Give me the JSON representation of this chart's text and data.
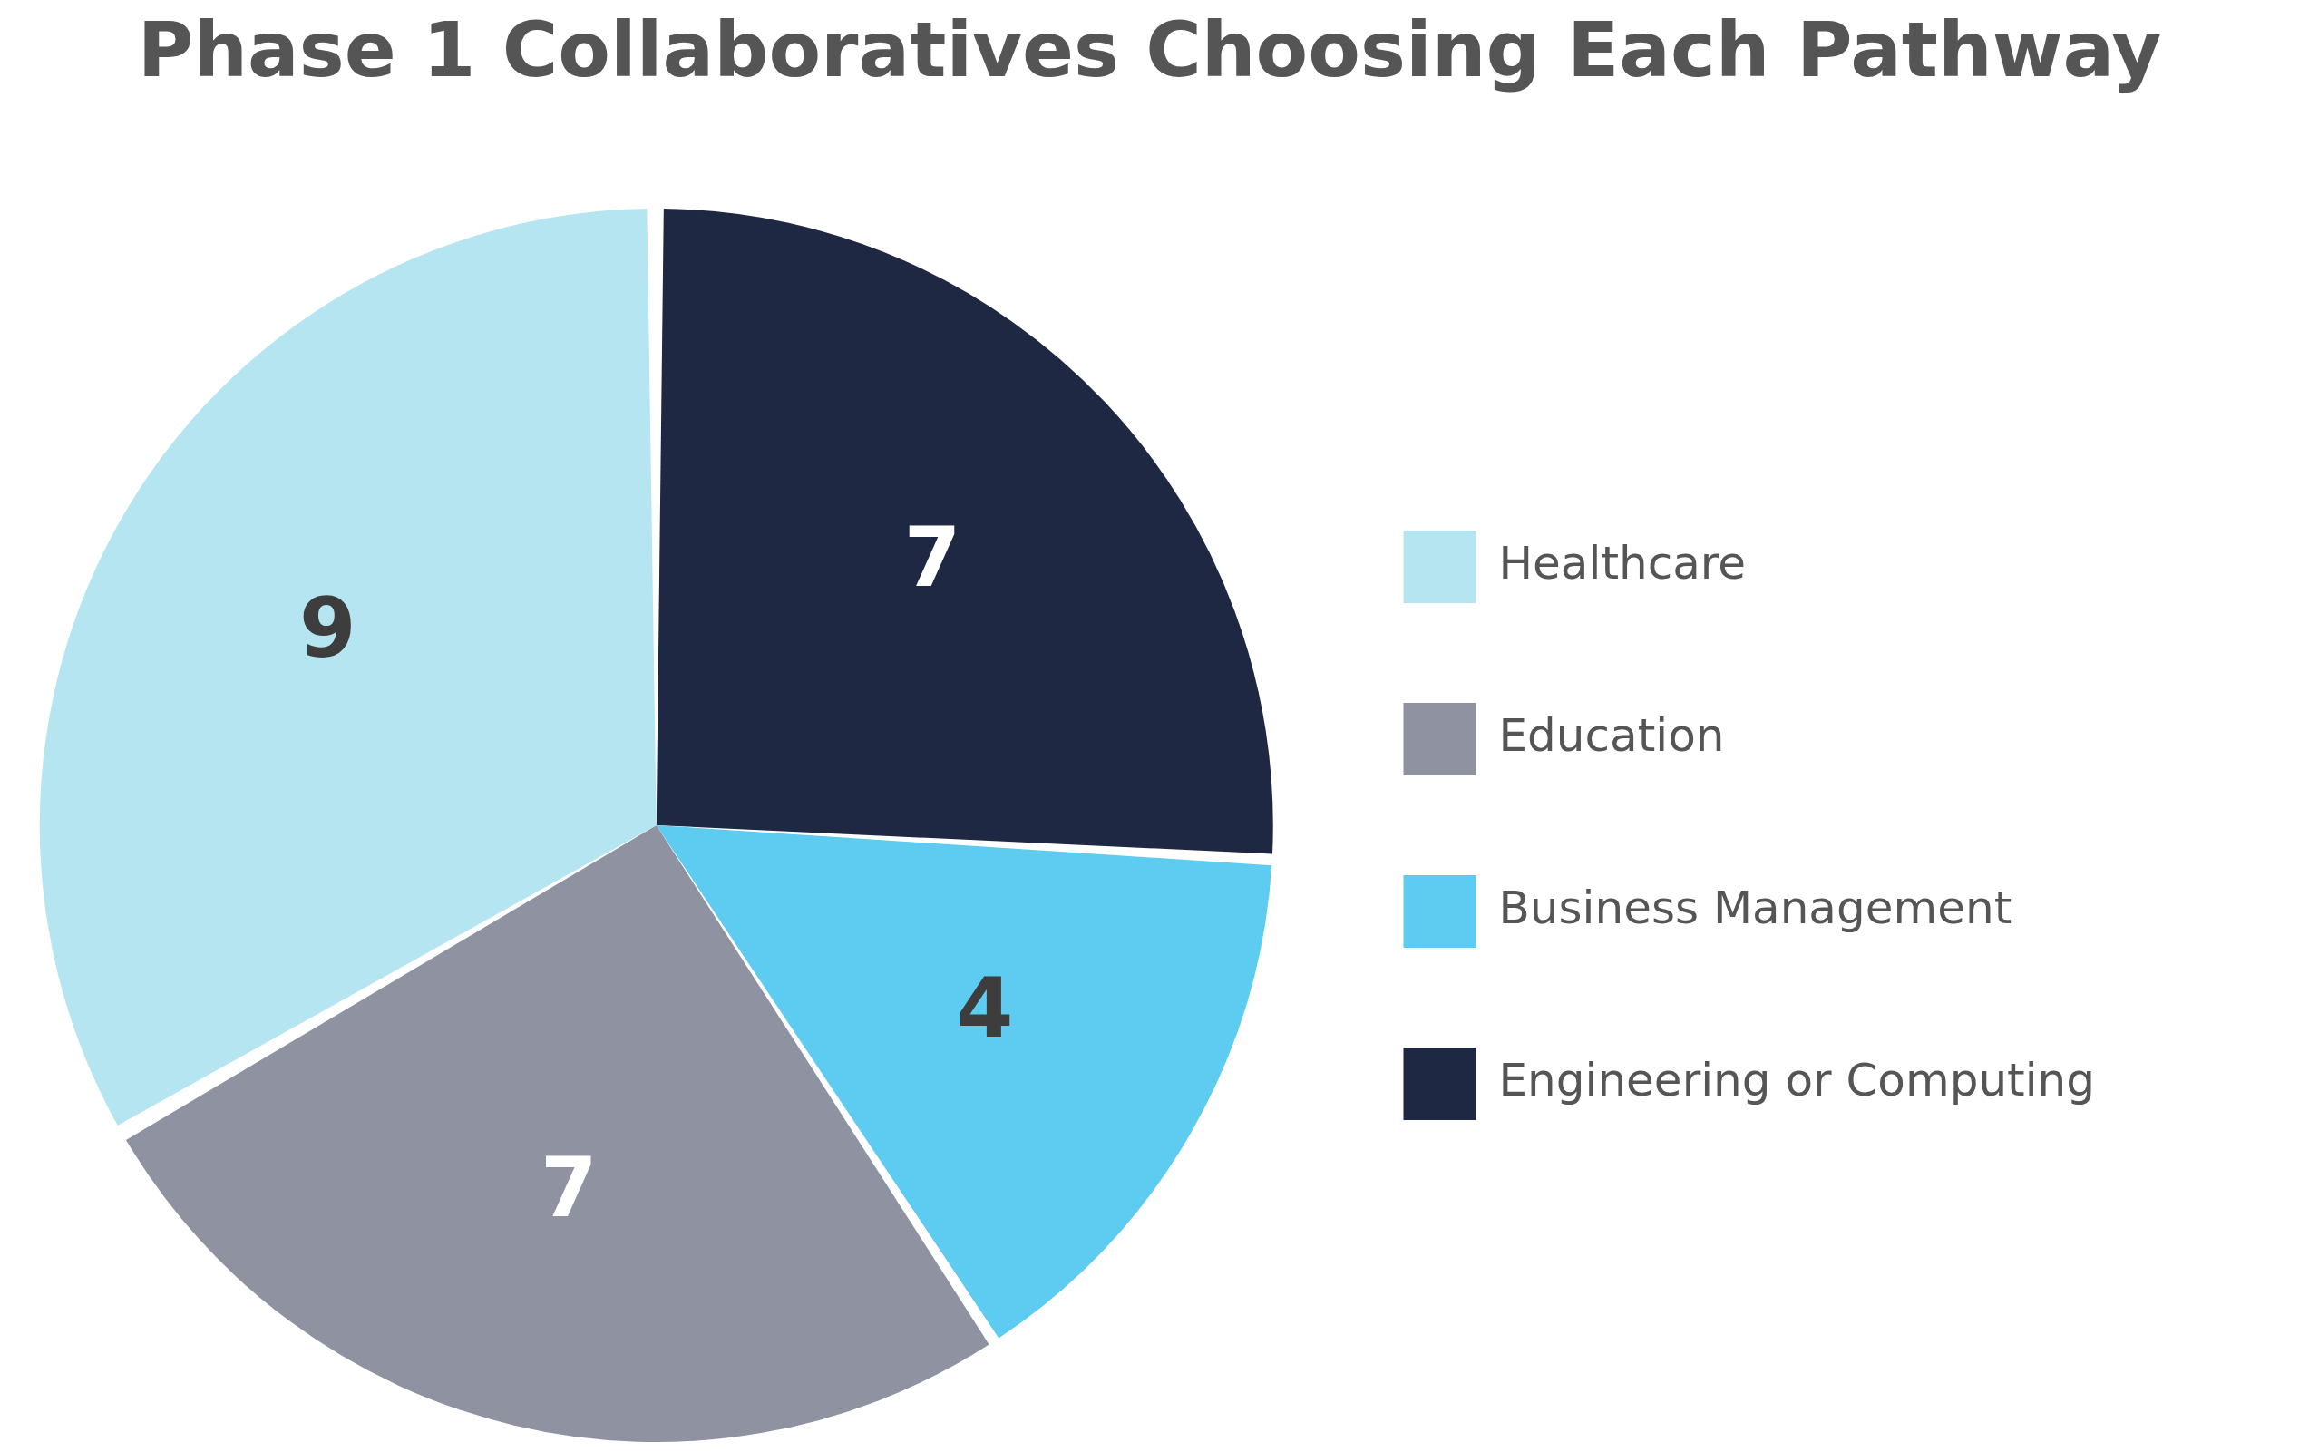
{
  "chart_data": {
    "type": "pie",
    "title": "Phase 1 Collaboratives Choosing Each Pathway",
    "categories": [
      "Engineering or Computing",
      "Business Management",
      "Education",
      "Healthcare"
    ],
    "values": [
      7,
      4,
      7,
      9
    ],
    "colors": [
      "#1f2842",
      "#5ecbf1",
      "#8f93a1",
      "#b5e5f1"
    ],
    "data_labels": true,
    "legend": "right"
  }
}
